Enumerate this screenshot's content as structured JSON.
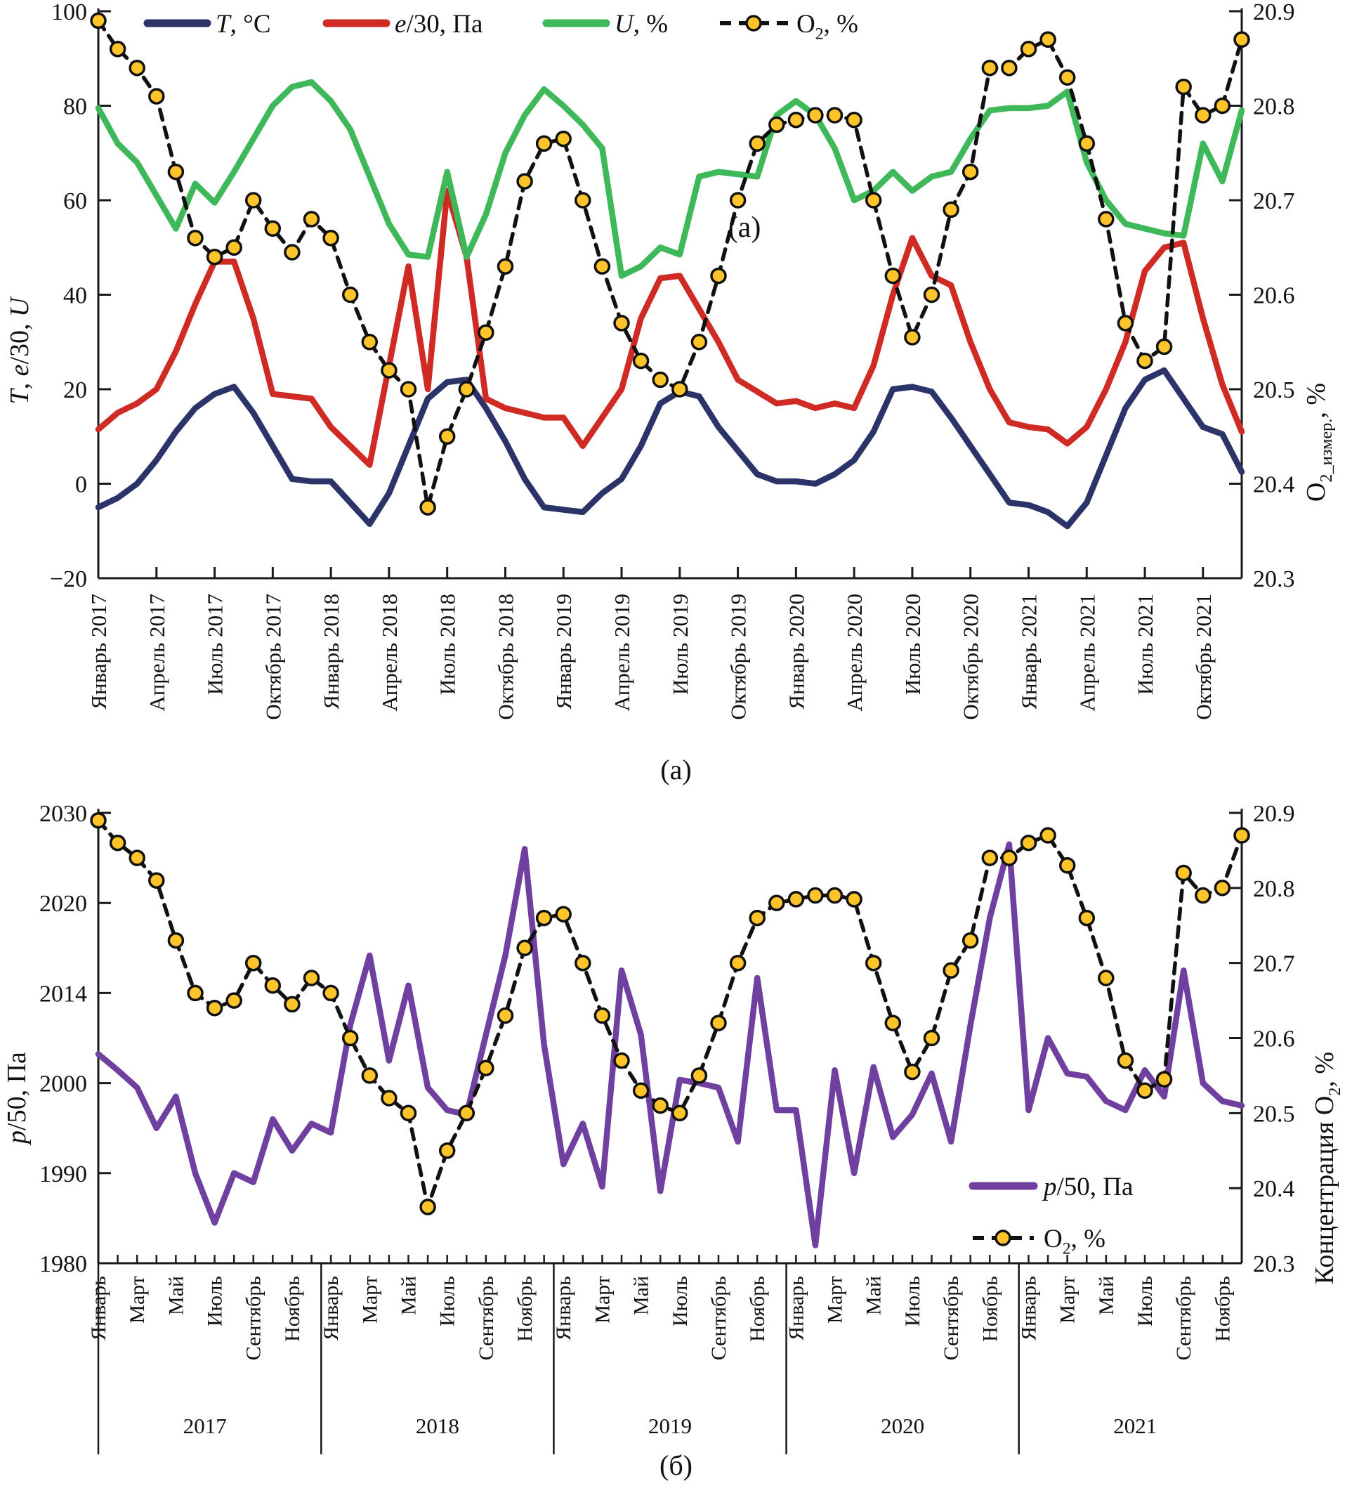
{
  "figure": {
    "panel_a_inline_label": "(a)",
    "panel_a_caption": "(а)",
    "panel_b_caption": "(б)"
  },
  "colors": {
    "temperature": "#2b3468",
    "vapor_pressure": "#cf2a24",
    "humidity": "#3eb859",
    "pressure": "#7040a0",
    "o2_line": "#111111",
    "o2_marker_fill": "#ffc42a",
    "axis": "#1a1a1a"
  },
  "chart_data": [
    {
      "type": "line",
      "panel": "a",
      "n_months": 60,
      "x_start": "Январь 2017",
      "x_end": "Декабрь 2021",
      "x_tick_labels": [
        "Январь 2017",
        "Апрель 2017",
        "Июль 2017",
        "Октябрь 2017",
        "Январь 2018",
        "Апрель 2018",
        "Июль 2018",
        "Октябрь 2018",
        "Январь 2019",
        "Апрель 2019",
        "Июль 2019",
        "Октябрь 2019",
        "Январь 2020",
        "Апрель 2020",
        "Июль 2020",
        "Октябрь 2020",
        "Январь 2021",
        "Апрель 2021",
        "Июль 2021",
        "Октябрь 2021"
      ],
      "left_axis": {
        "label_text": "T, e/30, U",
        "label_spec": [
          {
            "t": "T",
            "i": true
          },
          {
            "t": ", "
          },
          {
            "t": "e",
            "i": true
          },
          {
            "t": "/30, "
          },
          {
            "t": "U",
            "i": true
          }
        ],
        "ticks": [
          100,
          80,
          60,
          40,
          20,
          0,
          -20
        ],
        "range": [
          -20,
          100
        ]
      },
      "right_axis": {
        "label_text": "O2_измер., %",
        "label_spec": [
          {
            "t": "O"
          },
          {
            "t": "2_измер.",
            "sub": true
          },
          {
            "t": ", %"
          }
        ],
        "ticks": [
          20.9,
          20.8,
          20.7,
          20.6,
          20.5,
          20.4,
          20.3
        ],
        "range": [
          20.3,
          20.9
        ]
      },
      "legend_position": "top",
      "series": [
        {
          "name": "T, °C",
          "axis": "left",
          "style": "solid",
          "color_key": "temperature",
          "label_spec": [
            {
              "t": "T",
              "i": true
            },
            {
              "t": ", °C"
            }
          ],
          "values": [
            -5,
            -3,
            0,
            5,
            11,
            16,
            19,
            20.5,
            15,
            8,
            1,
            0.5,
            0.5,
            -4,
            -8.5,
            -2,
            8,
            18,
            21.5,
            22,
            16,
            9,
            1,
            -5,
            -5.5,
            -6,
            -2,
            1,
            8,
            17,
            19.5,
            18.5,
            12,
            7,
            2,
            0.5,
            0.5,
            0,
            2,
            5,
            11,
            20,
            20.5,
            19.5,
            14,
            8,
            2,
            -4,
            -4.5,
            -6,
            -9,
            -4,
            6,
            16,
            22,
            24,
            18,
            12,
            10.5,
            2.5
          ]
        },
        {
          "name": "e/30, Па",
          "axis": "left",
          "style": "solid",
          "color_key": "vapor_pressure",
          "label_spec": [
            {
              "t": "e",
              "i": true
            },
            {
              "t": "/30, Па"
            }
          ],
          "values": [
            11.5,
            15,
            17,
            20,
            28,
            38,
            47,
            47,
            35,
            19,
            18.5,
            18,
            12,
            8,
            4,
            25,
            46,
            20,
            62,
            48,
            18,
            16,
            15,
            14,
            14,
            8,
            14,
            20,
            35,
            43.5,
            44,
            37,
            30,
            22,
            19.5,
            17,
            17.5,
            16,
            17,
            16,
            25,
            40,
            52,
            44,
            42,
            30,
            20,
            13,
            12,
            11.5,
            8.5,
            12,
            20,
            30,
            45,
            50,
            51,
            35,
            21,
            11
          ]
        },
        {
          "name": "U, %",
          "axis": "left",
          "style": "solid",
          "color_key": "humidity",
          "label_spec": [
            {
              "t": "U",
              "i": true
            },
            {
              "t": ", %"
            }
          ],
          "values": [
            79.5,
            72,
            68,
            61,
            54,
            63.5,
            59.5,
            66,
            73,
            80,
            84,
            85,
            81,
            75,
            65,
            55,
            48.5,
            48,
            66,
            48,
            57,
            70,
            78,
            83.5,
            80,
            76,
            71,
            44,
            46,
            50,
            48.5,
            65,
            66,
            65.5,
            65,
            78,
            81,
            78,
            71,
            60,
            62,
            66,
            62,
            65,
            66,
            73,
            79,
            79.5,
            79.5,
            80,
            83,
            68,
            60,
            55,
            54,
            53,
            52.5,
            72,
            64,
            79
          ]
        },
        {
          "name": "O₂, %",
          "axis": "right",
          "style": "dashed-dot",
          "color_key": "o2_line",
          "label_spec": [
            {
              "t": "O"
            },
            {
              "t": "2",
              "sub": true
            },
            {
              "t": ", %"
            }
          ],
          "values": [
            20.89,
            20.86,
            20.84,
            20.81,
            20.73,
            20.66,
            20.64,
            20.65,
            20.7,
            20.67,
            20.645,
            20.68,
            20.66,
            20.6,
            20.55,
            20.52,
            20.5,
            20.375,
            20.45,
            20.5,
            20.56,
            20.63,
            20.72,
            20.76,
            20.765,
            20.7,
            20.63,
            20.57,
            20.53,
            20.51,
            20.5,
            20.55,
            20.62,
            20.7,
            20.76,
            20.78,
            20.785,
            20.79,
            20.79,
            20.785,
            20.7,
            20.62,
            20.555,
            20.6,
            20.69,
            20.73,
            20.84,
            20.84,
            20.86,
            20.87,
            20.83,
            20.76,
            20.68,
            20.57,
            20.53,
            20.545,
            20.82,
            20.79,
            20.8,
            20.87
          ]
        }
      ]
    },
    {
      "type": "line",
      "panel": "b",
      "n_months": 60,
      "years": [
        2017,
        2018,
        2019,
        2020,
        2021
      ],
      "month_tick_labels": [
        "Январь",
        "Март",
        "Май",
        "Июль",
        "Сентябрь",
        "Ноябрь"
      ],
      "left_axis": {
        "label_text": "p/50, Па",
        "label_spec": [
          {
            "t": "p",
            "i": true
          },
          {
            "t": "/50, Па"
          }
        ],
        "ticks": [
          2030,
          2020,
          2014,
          2000,
          1990,
          1980
        ]
      },
      "right_axis": {
        "label_text": "Концентрация O2, %",
        "label_spec": [
          {
            "t": "Концентрация O"
          },
          {
            "t": "2",
            "sub": true
          },
          {
            "t": ", %"
          }
        ],
        "ticks": [
          20.9,
          20.8,
          20.7,
          20.6,
          20.5,
          20.4,
          20.3
        ],
        "range": [
          20.3,
          20.9
        ]
      },
      "legend_position": "inside-right",
      "series": [
        {
          "name": "p/50, Па",
          "axis": "left",
          "style": "solid",
          "color_key": "pressure",
          "label_spec": [
            {
              "t": "p",
              "i": true
            },
            {
              "t": "/50, Па"
            }
          ],
          "values": [
            2004.5,
            2002,
            1999.5,
            1995,
            1998.5,
            1990,
            1984.5,
            1990,
            1989,
            1996,
            1992.5,
            1995.5,
            1994.5,
            2009,
            2016.5,
            2003.5,
            2014.5,
            1999.5,
            1997,
            1996.5,
            2007.5,
            2016.5,
            2026,
            2006,
            1991,
            1995.5,
            1988.5,
            2015.5,
            2007.5,
            1988,
            2000.5,
            2000,
            1999.5,
            1993.5,
            2015,
            1997,
            1997,
            1982,
            2002,
            1990,
            2002.5,
            1994,
            1996.5,
            2001.5,
            1993.5,
            2009,
            2019,
            2026.5,
            1997,
            2007,
            2001.5,
            2001,
            1998,
            1997,
            2002,
            1998.5,
            2015.5,
            2000,
            1998,
            1997.5
          ]
        },
        {
          "name": "O₂, %",
          "axis": "right",
          "style": "dashed-dot",
          "color_key": "o2_line",
          "label_spec": [
            {
              "t": "O"
            },
            {
              "t": "2",
              "sub": true
            },
            {
              "t": ", %"
            }
          ],
          "values": [
            20.89,
            20.86,
            20.84,
            20.81,
            20.73,
            20.66,
            20.64,
            20.65,
            20.7,
            20.67,
            20.645,
            20.68,
            20.66,
            20.6,
            20.55,
            20.52,
            20.5,
            20.375,
            20.45,
            20.5,
            20.56,
            20.63,
            20.72,
            20.76,
            20.765,
            20.7,
            20.63,
            20.57,
            20.53,
            20.51,
            20.5,
            20.55,
            20.62,
            20.7,
            20.76,
            20.78,
            20.785,
            20.79,
            20.79,
            20.785,
            20.7,
            20.62,
            20.555,
            20.6,
            20.69,
            20.73,
            20.84,
            20.84,
            20.86,
            20.87,
            20.83,
            20.76,
            20.68,
            20.57,
            20.53,
            20.545,
            20.82,
            20.79,
            20.8,
            20.87
          ]
        }
      ]
    }
  ]
}
